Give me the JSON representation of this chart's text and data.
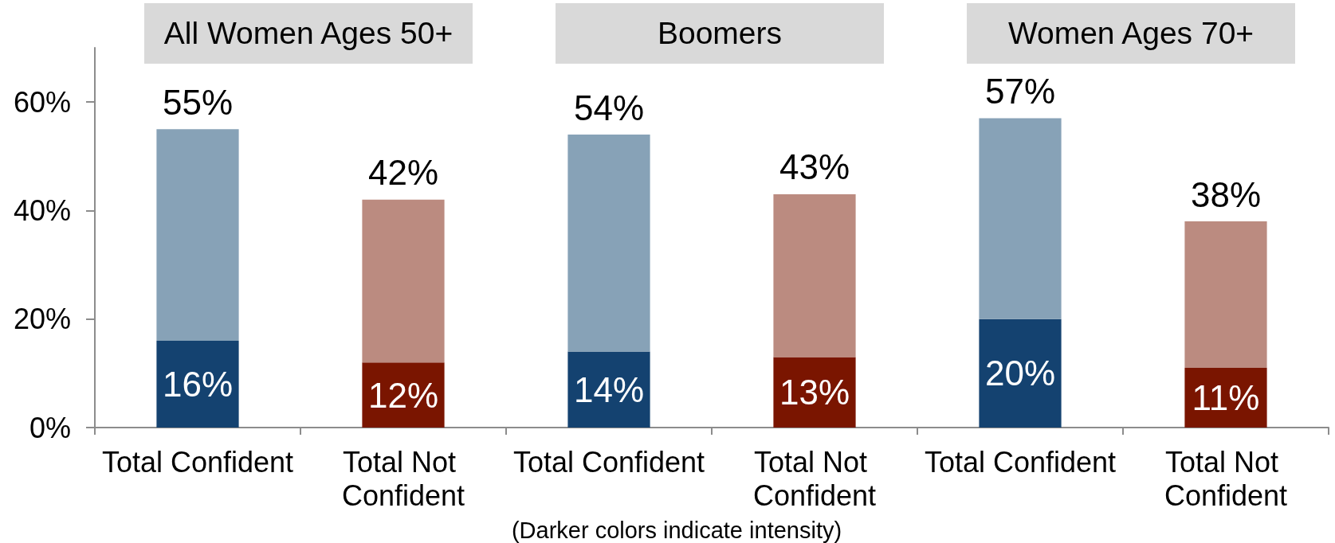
{
  "chart_data": {
    "type": "bar",
    "stacked": true,
    "categories": [
      "Total Confident",
      "Total Not Confident",
      "Total Confident",
      "Total Not Confident",
      "Total Confident",
      "Total Not Confident"
    ],
    "series": [
      {
        "values": [
          16,
          12,
          14,
          13,
          20,
          11
        ],
        "colors": [
          "#144270",
          "#7a1500",
          "#144270",
          "#7a1500",
          "#144270",
          "#7a1500"
        ],
        "value_labels": [
          "16%",
          "12%",
          "14%",
          "13%",
          "20%",
          "11%"
        ]
      },
      {
        "values": [
          39,
          30,
          40,
          30,
          37,
          27
        ],
        "colors": [
          "#87a2b7",
          "#bb8b80",
          "#87a2b7",
          "#bb8b80",
          "#87a2b7",
          "#bb8b80"
        ]
      }
    ],
    "totals": [
      "55%",
      "42%",
      "54%",
      "43%",
      "57%",
      "38%"
    ],
    "ylim": [
      0,
      70
    ],
    "yticks": [
      {
        "value": 0,
        "label": "0%"
      },
      {
        "value": 20,
        "label": "20%"
      },
      {
        "value": 40,
        "label": "40%"
      },
      {
        "value": 60,
        "label": "60%"
      }
    ],
    "annotations": [
      "All Women Ages 50+",
      "Boomers",
      "Women Ages 70+",
      "(Darker colors indicate intensity)"
    ]
  }
}
